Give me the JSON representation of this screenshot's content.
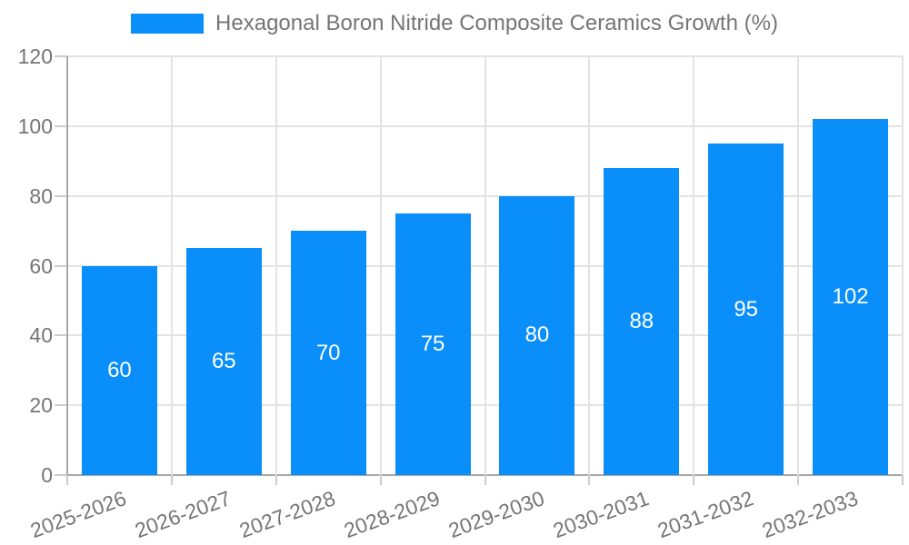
{
  "legend": {
    "label": "Hexagonal Boron Nitride Composite Ceramics Growth (%)"
  },
  "chart_data": {
    "type": "bar",
    "title": "Hexagonal Boron Nitride Composite Ceramics Growth (%)",
    "categories": [
      "2025-2026",
      "2026-2027",
      "2027-2028",
      "2028-2029",
      "2029-2030",
      "2030-2031",
      "2031-2032",
      "2032-2033"
    ],
    "series": [
      {
        "name": "Hexagonal Boron Nitride Composite Ceramics Growth (%)",
        "values": [
          60,
          65,
          70,
          75,
          80,
          88,
          95,
          102
        ]
      }
    ],
    "values": [
      60,
      65,
      70,
      75,
      80,
      88,
      95,
      102
    ],
    "value_labels": [
      "60",
      "65",
      "70",
      "75",
      "80",
      "88",
      "95",
      "102"
    ],
    "xlabel": "",
    "ylabel": "",
    "ylim": [
      0,
      120
    ],
    "yticks": [
      0,
      20,
      40,
      60,
      80,
      100,
      120
    ],
    "grid": true,
    "legend_position": "top-center",
    "x_label_rotation_deg": -20,
    "colors": {
      "bar": "#0a8efa",
      "value_label": "#ffffff",
      "axis": "#a8a8a8",
      "grid": "#e3e3e3",
      "tick": "#cccccc",
      "tick_label": "#757575",
      "legend_label": "#757575",
      "background": "#ffffff"
    }
  }
}
